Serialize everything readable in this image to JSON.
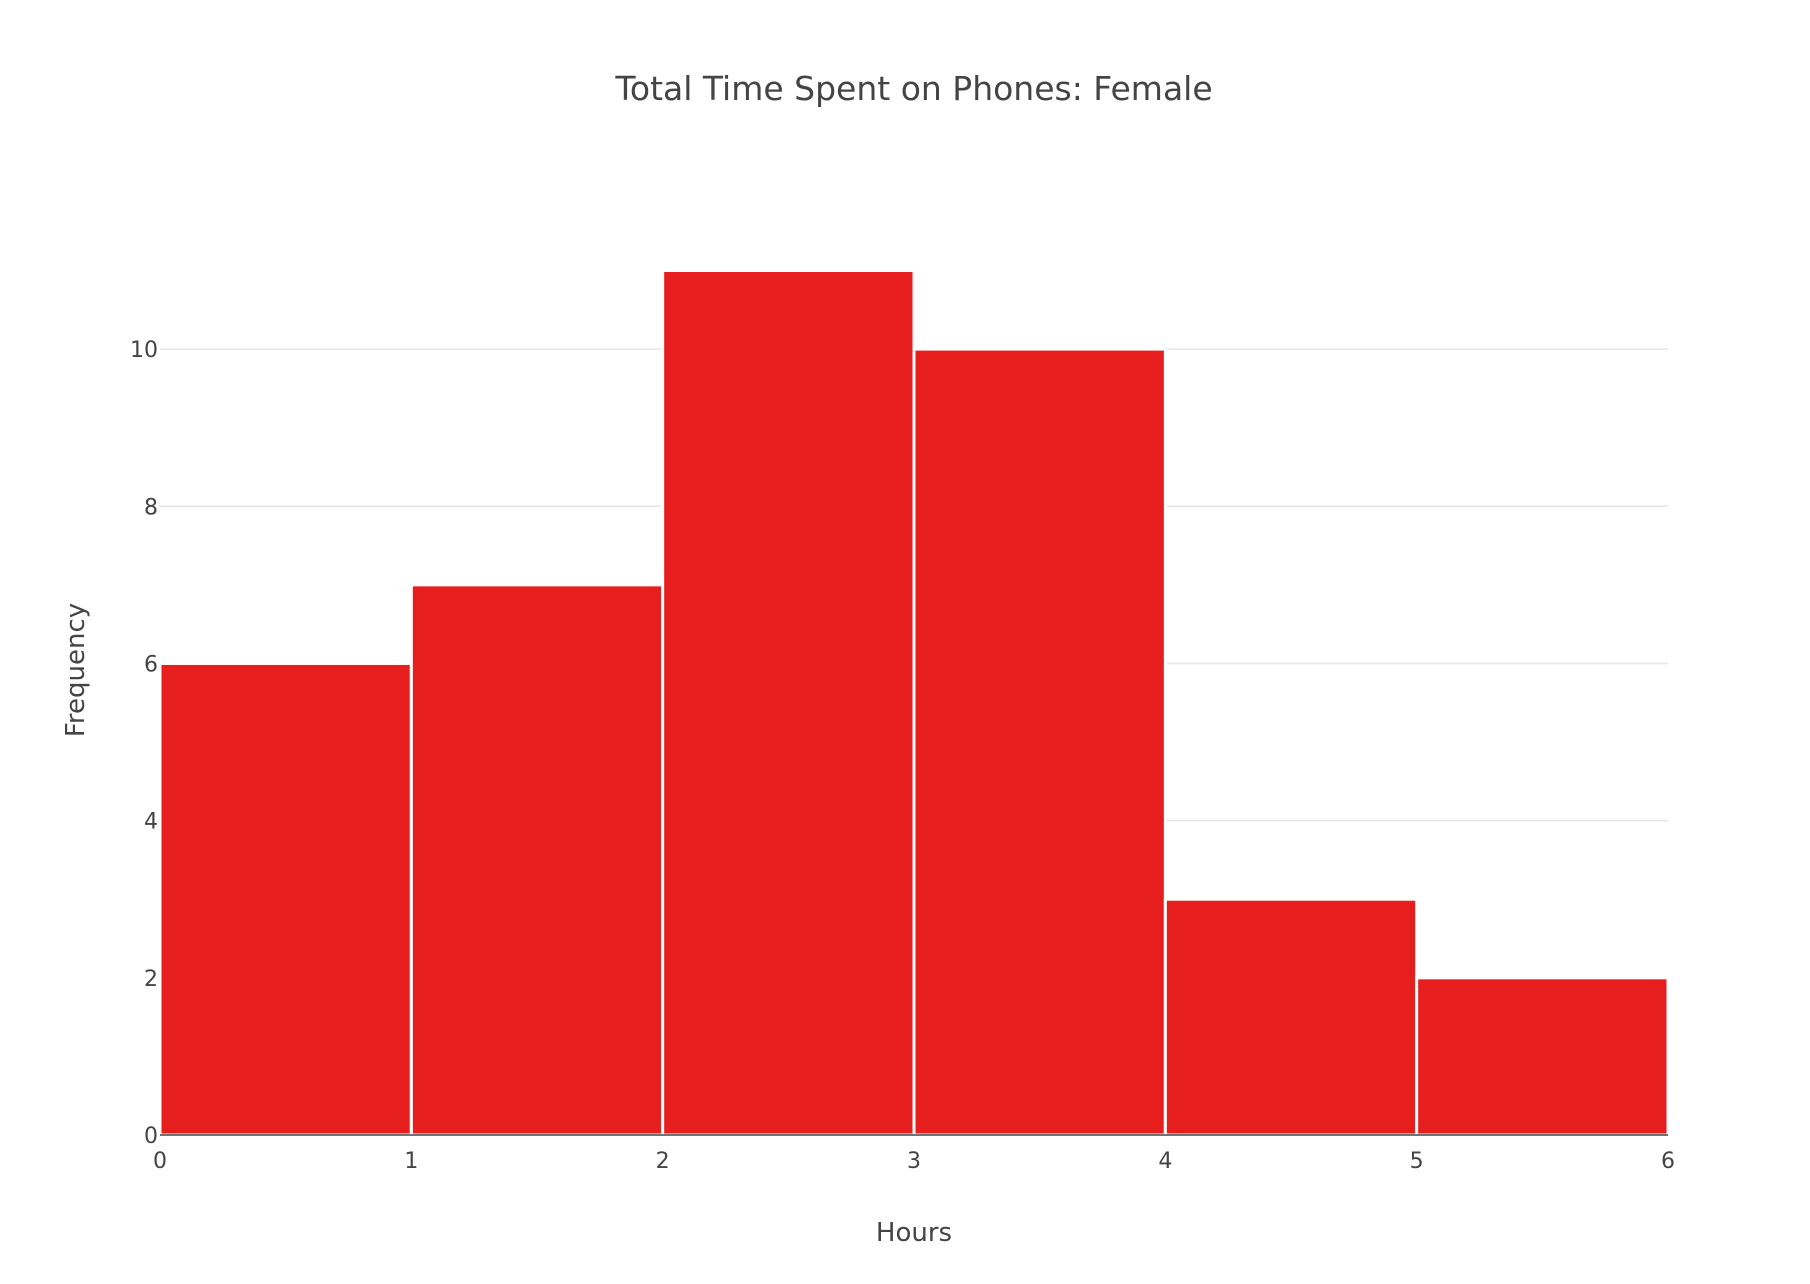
{
  "chart_data": {
    "type": "bar",
    "title": "Total Time Spent on Phones: Female",
    "xlabel": "Hours",
    "ylabel": "Frequency",
    "bins": [
      [
        0,
        1
      ],
      [
        1,
        2
      ],
      [
        2,
        3
      ],
      [
        3,
        4
      ],
      [
        4,
        5
      ],
      [
        5,
        6
      ]
    ],
    "values": [
      6,
      7,
      11,
      10,
      3,
      2
    ],
    "xlim": [
      0,
      6
    ],
    "ylim": [
      0,
      11.5789
    ],
    "xticks": [
      0,
      1,
      2,
      3,
      4,
      5,
      6
    ],
    "yticks": [
      0,
      2,
      4,
      6,
      8,
      10
    ],
    "grid": true,
    "bar_color": "#e61e1e"
  }
}
